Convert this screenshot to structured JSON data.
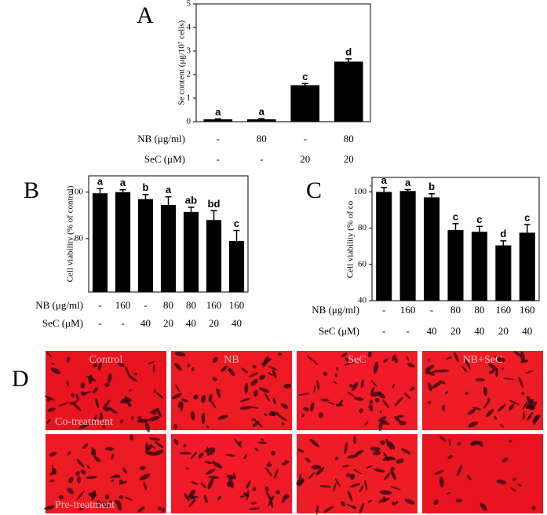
{
  "chart_data": [
    {
      "type": "bar",
      "panel": "A",
      "ylabel": "Se content (μg/10⁷ cells)",
      "values": [
        0.1,
        0.1,
        1.55,
        2.55
      ],
      "errors": [
        0.02,
        0.03,
        0.07,
        0.12
      ],
      "significance_letters": [
        "a",
        "a",
        "c",
        "d"
      ],
      "color": "#000000",
      "ylim": [
        0,
        5
      ],
      "yticks": [
        0,
        1,
        2,
        3,
        4,
        5
      ],
      "treatments": [
        {
          "name": "NB (μg/ml)",
          "labels": [
            "-",
            "80",
            "-",
            "80"
          ]
        },
        {
          "name": "SeC (μM)",
          "labels": [
            "-",
            "-",
            "20",
            "20"
          ]
        }
      ]
    },
    {
      "type": "bar",
      "panel": "B",
      "ylabel": "Cell viability (% of control)",
      "values": [
        99.5,
        100,
        97,
        94.5,
        91.5,
        88,
        79
      ],
      "errors": [
        2,
        1,
        2,
        3.5,
        2,
        4,
        4.5
      ],
      "significance_letters": [
        "a",
        "a",
        "b",
        "a",
        "ab",
        "bd",
        "c"
      ],
      "color": "#000000",
      "ylim": [
        57,
        107
      ],
      "yticks": [
        80,
        100
      ],
      "treatments": [
        {
          "name": "NB (μg/ml)",
          "labels": [
            "-",
            "160",
            "-",
            "80",
            "80",
            "160",
            "160"
          ]
        },
        {
          "name": "SeC  (μM)",
          "labels": [
            "-",
            "-",
            "40",
            "20",
            "40",
            "20",
            "40"
          ]
        }
      ]
    },
    {
      "type": "bar",
      "panel": "C",
      "ylabel": "Cell viability (% of co",
      "annotation": "`",
      "values": [
        100,
        100.5,
        97,
        79,
        78,
        70.5,
        77.5
      ],
      "errors": [
        2.5,
        0.8,
        2,
        3.5,
        3,
        2.5,
        4.5
      ],
      "significance_letters": [
        "a",
        "a",
        "b",
        "c",
        "c",
        "d",
        "c"
      ],
      "color": "#000000",
      "ylim": [
        40,
        108
      ],
      "yticks": [
        40,
        60,
        80,
        100
      ],
      "treatments": [
        {
          "name": "NB (μg/ml)",
          "labels": [
            "-",
            "160",
            "-",
            "80",
            "80",
            "160",
            "160"
          ]
        },
        {
          "name": "SeC  (μM)",
          "labels": [
            "-",
            "-",
            "40",
            "20",
            "40",
            "20",
            "40"
          ]
        }
      ]
    }
  ],
  "micrographs": {
    "panel": "D",
    "columns": [
      "Control",
      "NB",
      "SeC",
      "NB+SeC"
    ],
    "rows": [
      "Co-treatment",
      "Pre-treatment"
    ]
  }
}
